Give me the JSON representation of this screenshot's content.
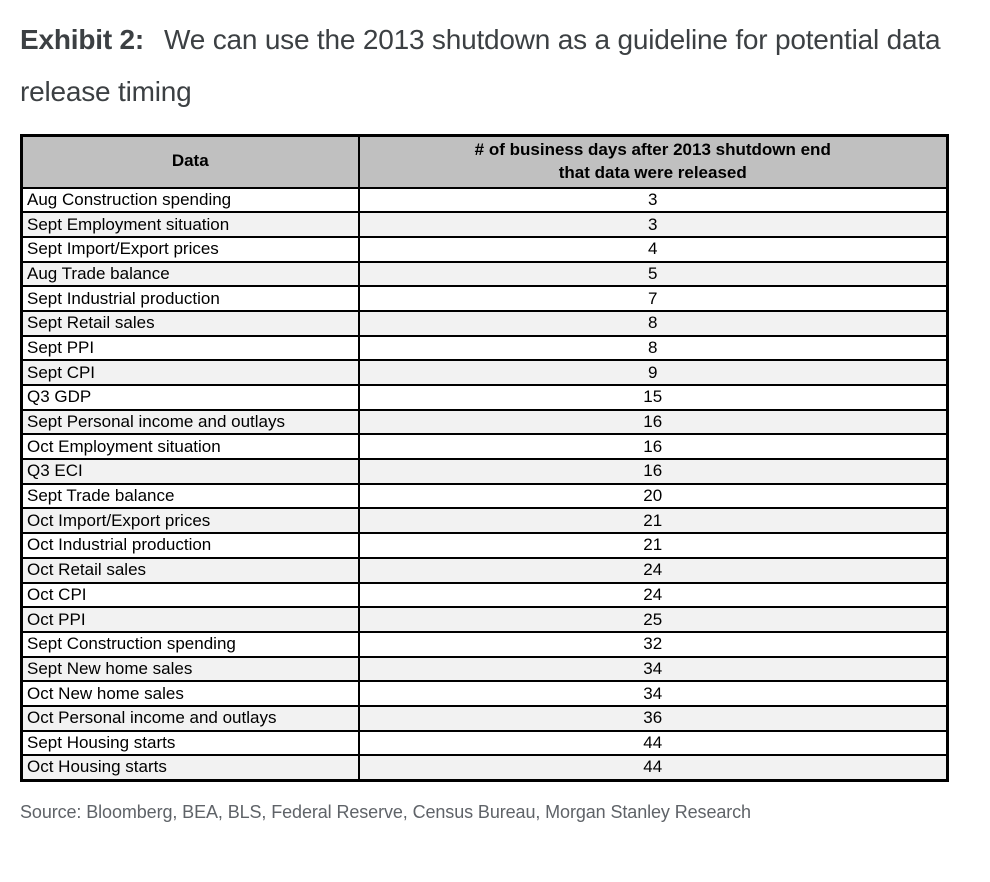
{
  "title": {
    "exhibit_label": "Exhibit 2:",
    "headline": "We can use the 2013 shutdown as a guideline for potential data release timing"
  },
  "table": {
    "header": {
      "col1": "Data",
      "col2": "# of business days after 2013 shutdown end\nthat data were released"
    },
    "rows": [
      [
        "Aug Construction spending",
        "3"
      ],
      [
        "Sept Employment situation",
        "3"
      ],
      [
        "Sept Import/Export prices",
        "4"
      ],
      [
        "Aug Trade balance",
        "5"
      ],
      [
        "Sept Industrial production",
        "7"
      ],
      [
        "Sept Retail sales",
        "8"
      ],
      [
        "Sept PPI",
        "8"
      ],
      [
        "Sept CPI",
        "9"
      ],
      [
        "Q3 GDP",
        "15"
      ],
      [
        "Sept Personal income and outlays",
        "16"
      ],
      [
        "Oct Employment situation",
        "16"
      ],
      [
        "Q3 ECI",
        "16"
      ],
      [
        "Sept Trade balance",
        "20"
      ],
      [
        "Oct Import/Export prices",
        "21"
      ],
      [
        "Oct Industrial production",
        "21"
      ],
      [
        "Oct Retail sales",
        "24"
      ],
      [
        "Oct CPI",
        "24"
      ],
      [
        "Oct PPI",
        "25"
      ],
      [
        "Sept Construction spending",
        "32"
      ],
      [
        "Sept New home sales",
        "34"
      ],
      [
        "Oct New home sales",
        "34"
      ],
      [
        "Oct Personal income and outlays",
        "36"
      ],
      [
        "Sept Housing starts",
        "44"
      ],
      [
        "Oct Housing starts",
        "44"
      ]
    ]
  },
  "source": "Source: Bloomberg, BEA, BLS, Federal Reserve, Census Bureau, Morgan Stanley Research",
  "colors": {
    "header_bg": "#c0c0c0",
    "row_alt_bg": "#f2f2f2",
    "border": "#000000",
    "title_text": "#3c4043",
    "source_text": "#5f6368"
  },
  "chart_data": {
    "type": "table",
    "title": "Exhibit 2: We can use the 2013 shutdown as a guideline for potential data release timing",
    "columns": [
      "Data",
      "# of business days after 2013 shutdown end that data were released"
    ],
    "categories": [
      "Aug Construction spending",
      "Sept Employment situation",
      "Sept Import/Export prices",
      "Aug Trade balance",
      "Sept Industrial production",
      "Sept Retail sales",
      "Sept PPI",
      "Sept CPI",
      "Q3 GDP",
      "Sept Personal income and outlays",
      "Oct Employment situation",
      "Q3 ECI",
      "Sept Trade balance",
      "Oct Import/Export prices",
      "Oct Industrial production",
      "Oct Retail sales",
      "Oct CPI",
      "Oct PPI",
      "Sept Construction spending",
      "Sept New home sales",
      "Oct New home sales",
      "Oct Personal income and outlays",
      "Sept Housing starts",
      "Oct Housing starts"
    ],
    "values": [
      3,
      3,
      4,
      5,
      7,
      8,
      8,
      9,
      15,
      16,
      16,
      16,
      20,
      21,
      21,
      24,
      24,
      25,
      32,
      34,
      34,
      36,
      44,
      44
    ]
  }
}
